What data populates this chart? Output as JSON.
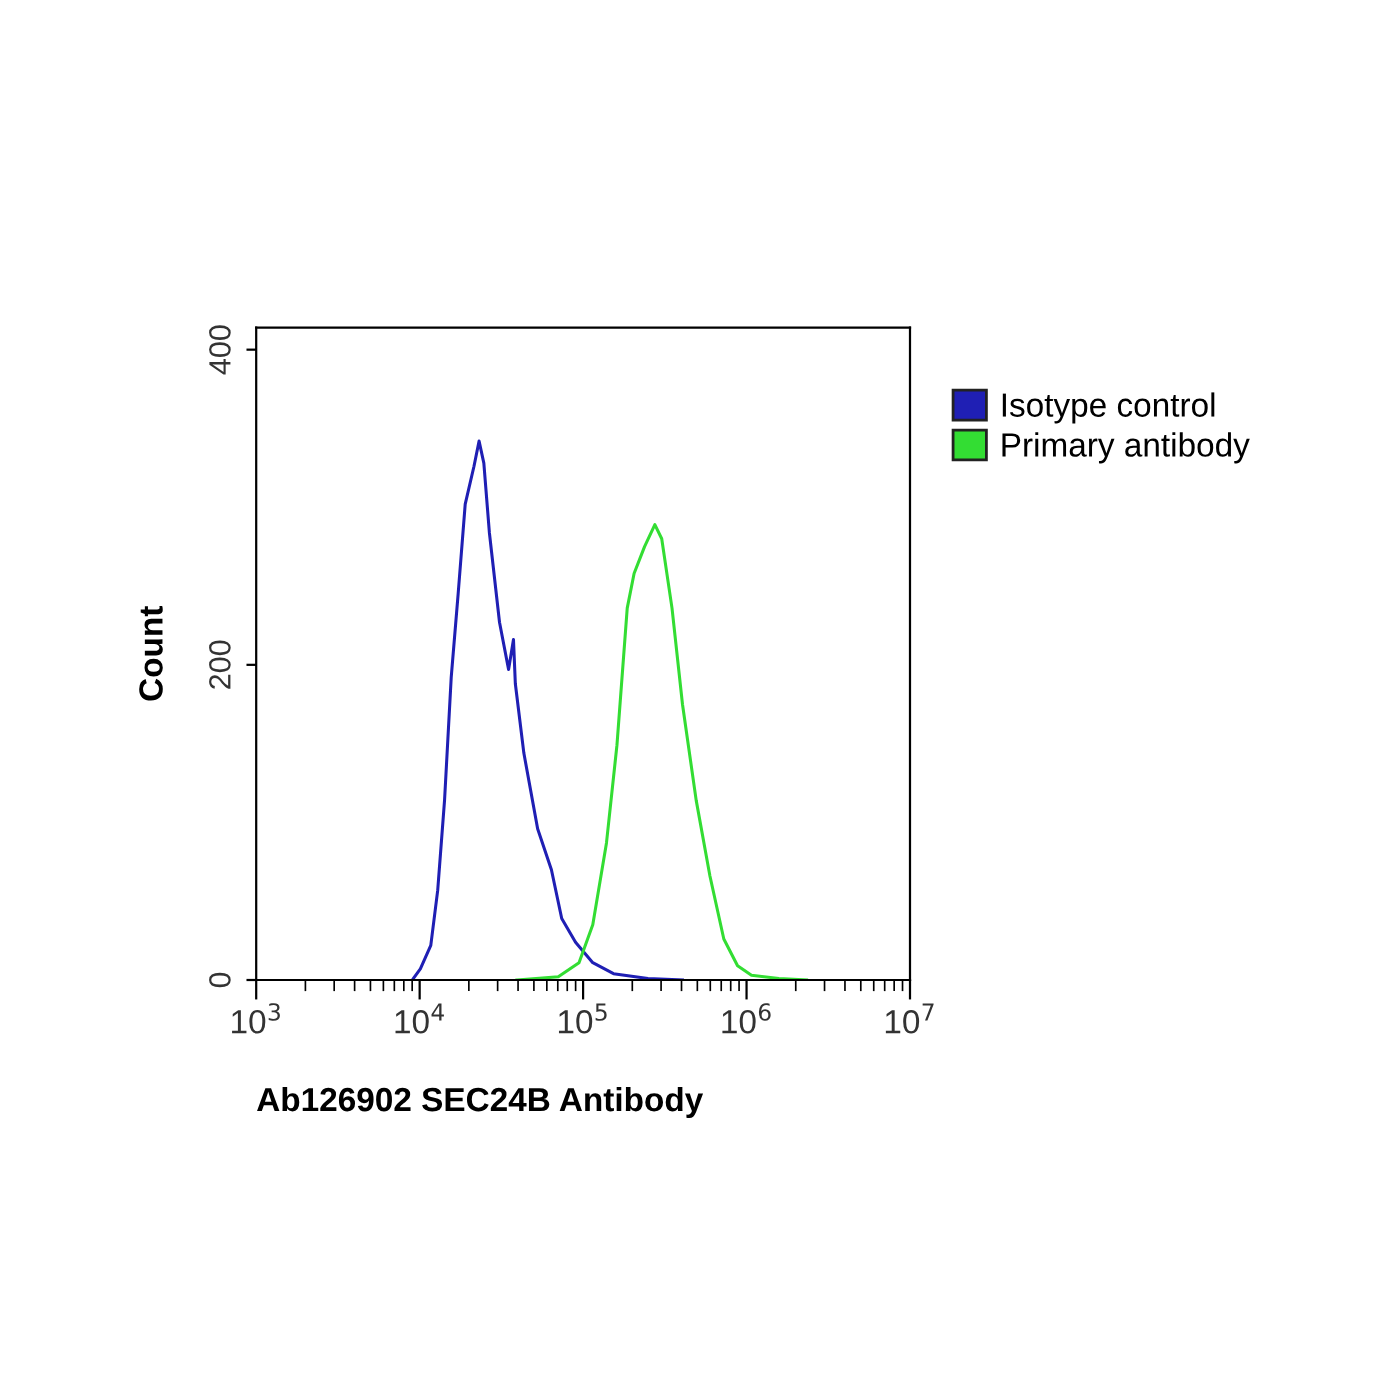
{
  "chart_data": {
    "type": "line",
    "xlabel": "Ab126902 SEC24B Antibody",
    "ylabel": "Count",
    "log": "x",
    "legend": "top right",
    "grid": false,
    "xlim": [
      1000,
      10000000
    ],
    "ylim": [
      0,
      414
    ],
    "xticks": [
      {
        "value": 1000,
        "label": "10$^{3}$"
      },
      {
        "value": 10000,
        "label": "10$^{4}$"
      },
      {
        "value": 100000,
        "label": "10$^{5}$"
      },
      {
        "value": 1000000,
        "label": "10$^{6}$"
      },
      {
        "value": 10000000,
        "label": "10$^{7}$"
      }
    ],
    "yticks": [
      0,
      200,
      400
    ],
    "series": [
      {
        "name": "Isotype control",
        "color": "#1f1fb4",
        "x": [
          9160,
          10100,
          11700,
          12900,
          14200,
          15600,
          17200,
          19000,
          21500,
          23100,
          24700,
          26700,
          30800,
          35000,
          37500,
          38500,
          43400,
          52700,
          64000,
          74000,
          89900,
          114600,
          153500,
          249500,
          405500
        ],
        "values": [
          1,
          7,
          22,
          57,
          114,
          192,
          245,
          302,
          326,
          342,
          328,
          284,
          227,
          197,
          216,
          188,
          144,
          96,
          70,
          39,
          24,
          11,
          4,
          1,
          0
        ]
      },
      {
        "name": "Primary antibody",
        "color": "#33dd33",
        "x": [
          39400,
          70500,
          94400,
          114600,
          139000,
          161100,
          186200,
          205100,
          237700,
          274800,
          302700,
          349900,
          405500,
          492000,
          597000,
          726000,
          881000,
          1072000,
          1578000,
          2328000
        ],
        "values": [
          0,
          2,
          11,
          35,
          87,
          149,
          236,
          258,
          275,
          289,
          280,
          236,
          175,
          114,
          66,
          26,
          9,
          3,
          1,
          0
        ]
      }
    ]
  }
}
